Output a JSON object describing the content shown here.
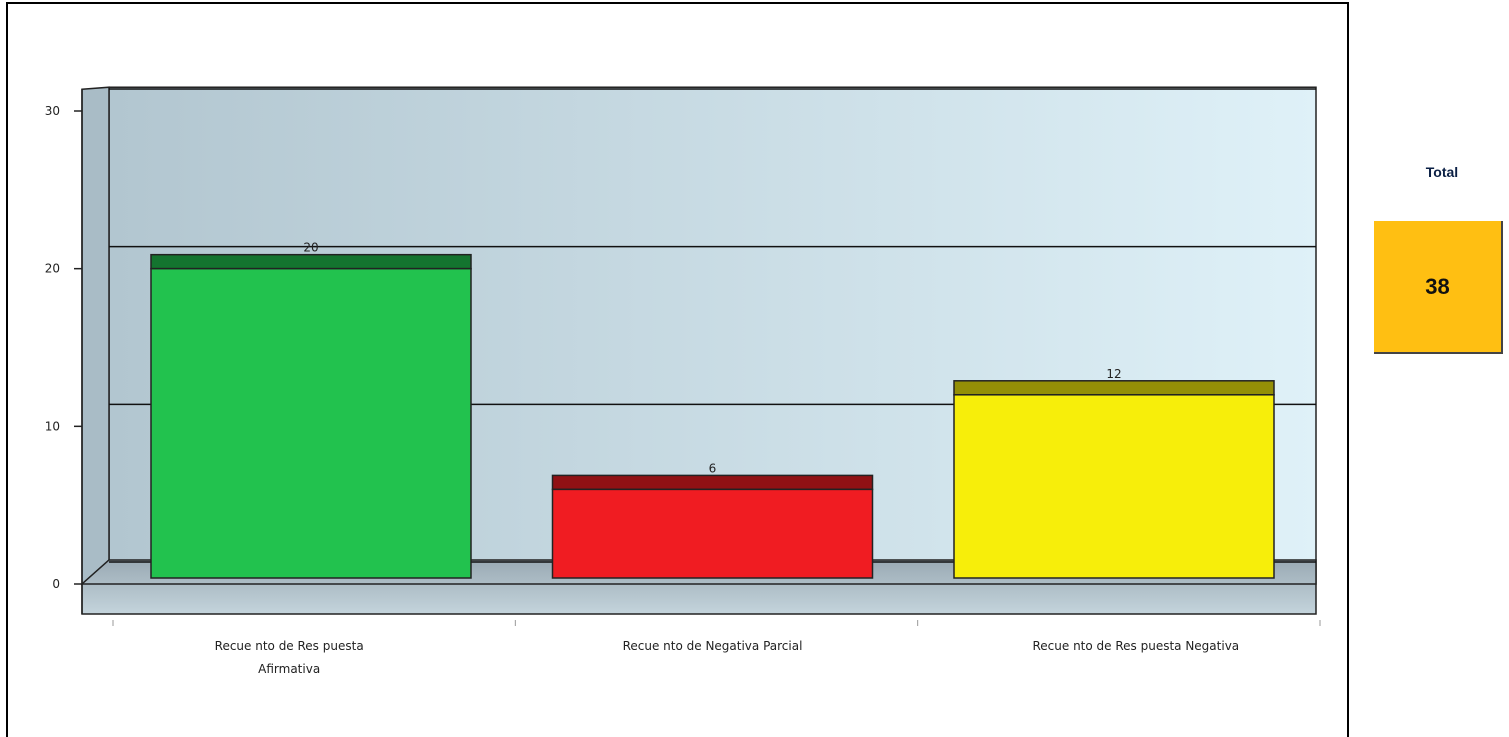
{
  "chart_data": {
    "type": "bar",
    "categories": [
      [
        "Recue nto de Res puesta",
        "Afirmativa"
      ],
      [
        "Recue nto de Negativa Parcial"
      ],
      [
        "Recue nto de Res puesta Negativa"
      ]
    ],
    "values": [
      20,
      6,
      12
    ],
    "data_labels": [
      "20",
      "6",
      "12"
    ],
    "colors": [
      "#22c24e",
      "#f01c22",
      "#f7ee0a"
    ],
    "ylim": [
      0,
      31
    ],
    "yticks": [
      0,
      10,
      20,
      30
    ],
    "grid": true,
    "title": "",
    "xlabel": "",
    "ylabel": ""
  },
  "total": {
    "label": "Total",
    "value": "38",
    "color": "#ffbf12"
  }
}
